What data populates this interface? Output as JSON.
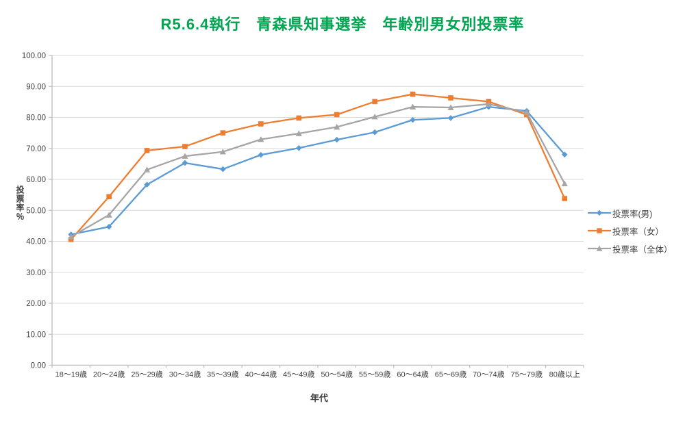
{
  "title": {
    "text": "R5.6.4執行　青森県知事選挙　年齢別男女別投票率",
    "color": "#00A551"
  },
  "chart_data": {
    "type": "line",
    "title": "R5.6.4執行　青森県知事選挙　年齢別男女別投票率",
    "categories": [
      "18～19歳",
      "20～24歳",
      "25～29歳",
      "30～34歳",
      "35～39歳",
      "40～44歳",
      "45～49歳",
      "50～54歳",
      "55～59歳",
      "60～64歳",
      "65～69歳",
      "70～74歳",
      "75～79歳",
      "80歳以上"
    ],
    "series": [
      {
        "name": "投票率(男)",
        "color": "#5B9BD5",
        "marker": "diamond",
        "values": [
          42.2,
          44.7,
          58.3,
          65.3,
          63.3,
          67.9,
          70.1,
          72.8,
          75.2,
          79.2,
          79.8,
          83.4,
          82.1,
          68.0
        ]
      },
      {
        "name": "投票率（女）",
        "color": "#ED7D31",
        "marker": "square",
        "values": [
          40.6,
          54.4,
          69.3,
          70.6,
          75.0,
          77.9,
          79.8,
          80.9,
          85.1,
          87.5,
          86.3,
          85.1,
          80.9,
          53.8
        ]
      },
      {
        "name": "投票率（全体）",
        "color": "#A5A5A5",
        "marker": "triangle",
        "values": [
          41.5,
          48.5,
          63.1,
          67.5,
          68.9,
          72.9,
          74.8,
          76.9,
          80.2,
          83.4,
          83.2,
          84.3,
          81.6,
          58.6
        ]
      }
    ],
    "xlabel": "年代",
    "ylabel": "投票率％",
    "ylim": [
      0,
      100
    ],
    "ytick_step": 10,
    "ytick_decimals": 2,
    "grid": "horizontal",
    "legend_position": "right",
    "axis_color": "#BFBFBF",
    "grid_color": "#D9D9D9",
    "text_color": "#404040"
  }
}
